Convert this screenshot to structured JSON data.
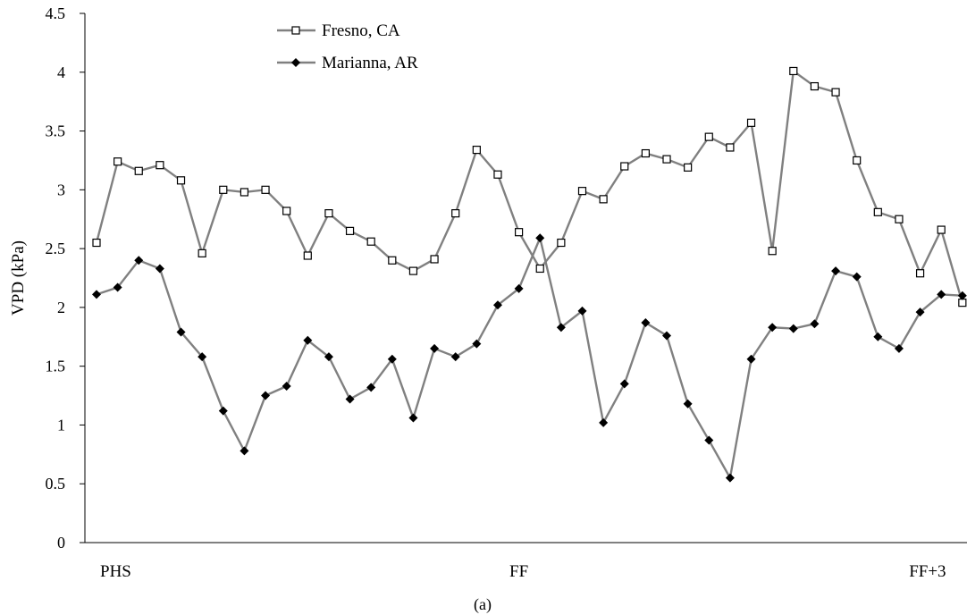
{
  "chart_data": {
    "type": "line",
    "ylabel": "VPD (kPa)",
    "ylim": [
      0,
      4.5
    ],
    "yticks": [
      0,
      0.5,
      1,
      1.5,
      2,
      2.5,
      3,
      3.5,
      4,
      4.5
    ],
    "ytick_labels": [
      "0",
      "0.5",
      "1",
      "1.5",
      "2",
      "2.5",
      "3",
      "3.5",
      "4",
      "4.5"
    ],
    "category_labels": [
      {
        "label": "PHS",
        "index": 0
      },
      {
        "label": "FF",
        "index": 20
      },
      {
        "label": "FF+3",
        "index": 40
      }
    ],
    "caption": "(a)",
    "grid": false,
    "legend_position": "top-left",
    "series": [
      {
        "name": "Fresno, CA",
        "marker": "open-square",
        "color": "#808080",
        "values": [
          2.55,
          3.24,
          3.16,
          3.21,
          3.08,
          2.46,
          3.0,
          2.98,
          3.0,
          2.82,
          2.44,
          2.8,
          2.65,
          2.56,
          2.4,
          2.31,
          2.41,
          2.8,
          3.34,
          3.13,
          2.64,
          2.33,
          2.55,
          2.99,
          2.92,
          3.2,
          3.31,
          3.26,
          3.19,
          3.45,
          3.36,
          3.57,
          2.48,
          4.01,
          3.88,
          3.83,
          3.25,
          2.81,
          2.75,
          2.29,
          2.66,
          2.04
        ]
      },
      {
        "name": "Marianna, AR",
        "marker": "filled-diamond",
        "color": "#808080",
        "values": [
          2.11,
          2.17,
          2.4,
          2.33,
          1.79,
          1.58,
          1.12,
          0.78,
          1.25,
          1.33,
          1.72,
          1.58,
          1.22,
          1.32,
          1.56,
          1.06,
          1.65,
          1.58,
          1.69,
          2.02,
          2.16,
          2.59,
          1.83,
          1.97,
          1.02,
          1.35,
          1.87,
          1.76,
          1.18,
          0.87,
          0.55,
          1.56,
          1.83,
          1.82,
          1.86,
          2.31,
          2.26,
          1.75,
          1.65,
          1.96,
          2.11,
          2.1
        ]
      }
    ]
  }
}
